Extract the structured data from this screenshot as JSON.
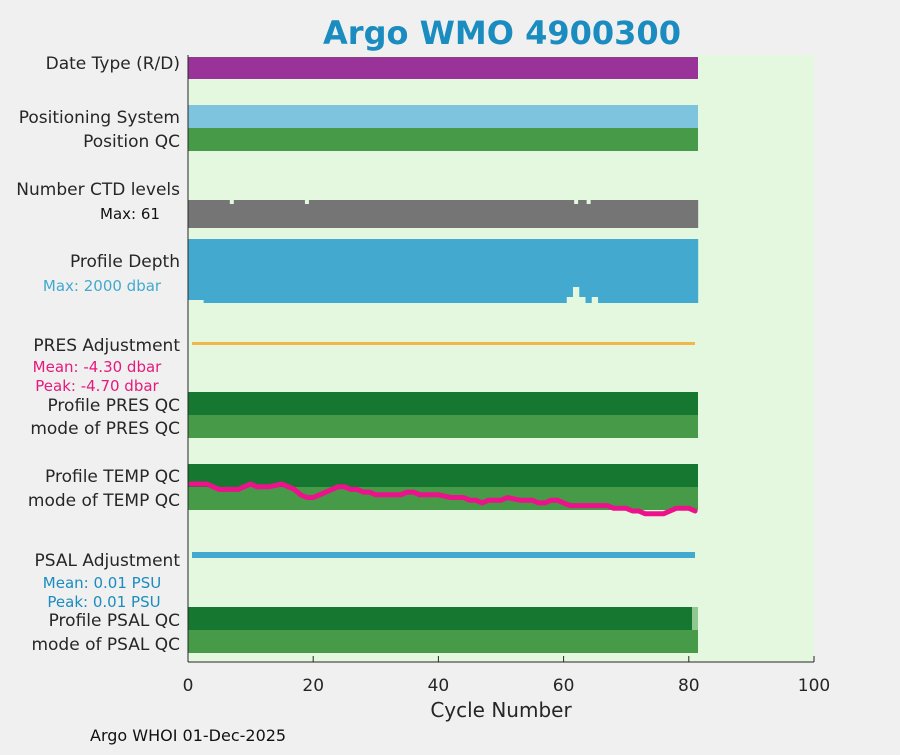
{
  "title": "Argo WMO 4900300",
  "footer": "Argo WHOI 01-Dec-2025",
  "colors": {
    "title": "#1a8cbf",
    "plot_bg": "#e3f8de",
    "date_type": "#993399",
    "positioning": "#7ec4de",
    "qc_light": "#479a47",
    "qc_dark": "#167730",
    "ctd": "#757575",
    "depth": "#43a9cf",
    "pres_adj": "#f0b84a",
    "pres_text": "#e6197c",
    "temp_line": "#ec128c",
    "psal": "#43a9cf",
    "psal_text": "#1a8cbf"
  },
  "chart_data": {
    "type": "bar",
    "title": "Argo WMO 4900300",
    "xlabel": "Cycle Number",
    "xlim": [
      0,
      100
    ],
    "xticks": [
      0,
      20,
      40,
      60,
      80,
      100
    ],
    "last_cycle": 81.5,
    "rows": [
      {
        "label": "Date Type (R/D)",
        "band": "date_type"
      },
      {
        "label": "Positioning System",
        "band": "positioning"
      },
      {
        "label": "Position QC",
        "band": "position_qc"
      },
      {
        "label": "Number CTD levels",
        "band": "ctd",
        "note": "Max: 61"
      },
      {
        "label": "Profile Depth",
        "band": "depth",
        "note": "Max: 2000 dbar"
      },
      {
        "label": "PRES Adjustment",
        "band": "pres_adj",
        "notes": [
          "Mean: -4.30 dbar",
          "Peak: -4.70 dbar"
        ]
      },
      {
        "label": "Profile PRES QC",
        "band": "profile_pres_qc"
      },
      {
        "label": "mode of PRES QC",
        "band": "mode_pres_qc"
      },
      {
        "label": "Profile TEMP QC",
        "band": "profile_temp_qc"
      },
      {
        "label": "mode of TEMP QC",
        "band": "mode_temp_qc"
      },
      {
        "label": "PSAL Adjustment",
        "band": "psal_adj",
        "notes": [
          "Mean: 0.01 PSU",
          "Peak: 0.01 PSU"
        ]
      },
      {
        "label": "Profile PSAL QC",
        "band": "profile_psal_qc"
      },
      {
        "label": "mode of PSAL QC",
        "band": "mode_psal_qc"
      }
    ],
    "labels": {
      "date_type": "Date Type (R/D)",
      "positioning": "Positioning System",
      "position_qc": "Position QC",
      "ctd": "Number CTD levels",
      "ctd_max": "Max: 61",
      "depth": "Profile Depth",
      "depth_max": "Max: 2000 dbar",
      "pres_adj": "PRES Adjustment",
      "pres_mean": "Mean: -4.30 dbar",
      "pres_peak": "Peak: -4.70 dbar",
      "profile_pres_qc": "Profile PRES QC",
      "mode_pres_qc": "mode of PRES QC",
      "profile_temp_qc": "Profile TEMP QC",
      "mode_temp_qc": "mode of TEMP QC",
      "psal_adj": "PSAL Adjustment",
      "psal_mean": "Mean: 0.01 PSU",
      "psal_peak": "Peak: 0.01 PSU",
      "profile_psal_qc": "Profile PSAL QC",
      "mode_psal_qc": "mode of PSAL QC"
    },
    "ctd_levels": {
      "max": 61,
      "dip_cycles": [
        7,
        19,
        62,
        64
      ]
    },
    "profile_depth": {
      "max_dbar": 2000,
      "shallow_cycles": [
        1,
        61,
        62,
        63,
        64,
        65
      ]
    },
    "temp_adjustment_series": {
      "x": [
        0.5,
        3,
        4,
        5,
        8,
        9,
        10,
        11,
        13,
        15,
        16,
        17,
        18,
        19,
        20,
        21,
        23,
        24,
        25,
        26,
        27,
        28,
        29,
        30,
        32,
        34,
        35,
        36,
        37,
        38,
        39,
        40,
        42,
        44,
        45,
        46,
        47,
        48,
        49,
        50,
        51,
        53,
        54,
        55,
        56,
        57,
        58,
        59,
        60,
        61,
        62,
        64,
        65,
        66,
        67,
        68,
        69,
        70,
        71,
        72,
        73,
        74,
        75,
        76,
        77,
        78,
        79,
        80,
        81
      ],
      "values": [
        0.0,
        0.0,
        -0.05,
        -0.1,
        -0.1,
        -0.05,
        0.0,
        -0.05,
        -0.05,
        0.0,
        -0.05,
        -0.1,
        -0.2,
        -0.25,
        -0.25,
        -0.2,
        -0.1,
        -0.05,
        -0.05,
        -0.1,
        -0.1,
        -0.15,
        -0.15,
        -0.2,
        -0.2,
        -0.2,
        -0.15,
        -0.15,
        -0.2,
        -0.2,
        -0.2,
        -0.2,
        -0.25,
        -0.25,
        -0.3,
        -0.3,
        -0.35,
        -0.3,
        -0.3,
        -0.3,
        -0.25,
        -0.3,
        -0.3,
        -0.3,
        -0.35,
        -0.35,
        -0.3,
        -0.3,
        -0.35,
        -0.4,
        -0.4,
        -0.4,
        -0.4,
        -0.4,
        -0.4,
        -0.45,
        -0.45,
        -0.45,
        -0.5,
        -0.5,
        -0.55,
        -0.55,
        -0.55,
        -0.55,
        -0.5,
        -0.45,
        -0.45,
        -0.45,
        -0.5
      ]
    },
    "psal_qc_last_cycle_flag": "light"
  }
}
